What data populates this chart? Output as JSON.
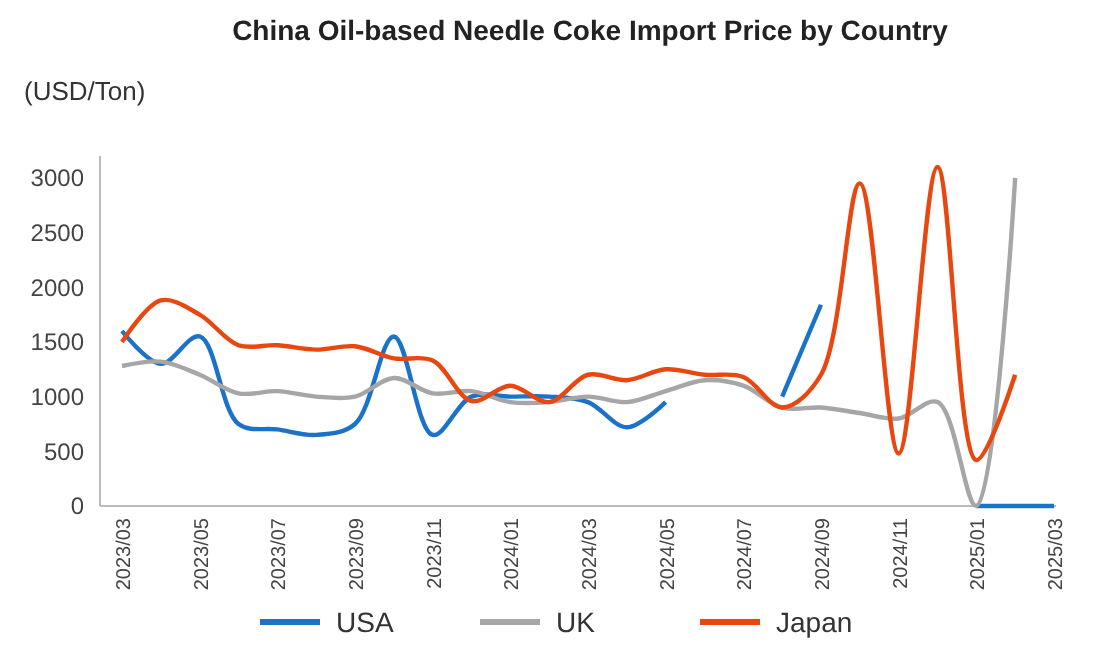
{
  "chart_data": {
    "type": "line",
    "title": "China Oil-based Needle Coke Import Price by Country",
    "ylabel": "(USD/Ton)",
    "categories": [
      "2023/03",
      null,
      "2023/05",
      null,
      "2023/07",
      null,
      "2023/09",
      null,
      "2023/11",
      null,
      "2024/01",
      null,
      "2024/03",
      null,
      "2024/05",
      null,
      "2024/07",
      null,
      "2024/09",
      null,
      "2024/11",
      null,
      "2025/01",
      null,
      "2025/03"
    ],
    "series": [
      {
        "name": "USA",
        "color": "#1a73c8",
        "values": [
          1600,
          1300,
          1550,
          750,
          700,
          650,
          750,
          1550,
          650,
          1000,
          1000,
          1000,
          950,
          720,
          950,
          null,
          null,
          1000,
          1840,
          null,
          null,
          null,
          0,
          0,
          0
        ]
      },
      {
        "name": "UK",
        "color": "#a6a6a6",
        "values": [
          1280,
          1320,
          1200,
          1030,
          1050,
          1000,
          1000,
          1170,
          1030,
          1050,
          950,
          950,
          1000,
          950,
          1050,
          1150,
          1100,
          900,
          900,
          850,
          800,
          950,
          0,
          3000,
          null
        ]
      },
      {
        "name": "Japan",
        "color": "#e8470f",
        "values": [
          1500,
          1880,
          1750,
          1470,
          1470,
          1430,
          1460,
          1350,
          1330,
          960,
          1100,
          950,
          1200,
          1150,
          1250,
          1200,
          1180,
          900,
          1200,
          2950,
          480,
          3100,
          420,
          1200,
          null
        ]
      }
    ],
    "ylim": [
      0,
      3200
    ],
    "yticks": [
      0,
      500,
      1000,
      1500,
      2000,
      2500,
      3000
    ],
    "grid": false,
    "legend": "bottom",
    "marker": "none",
    "line_style": "solid"
  }
}
